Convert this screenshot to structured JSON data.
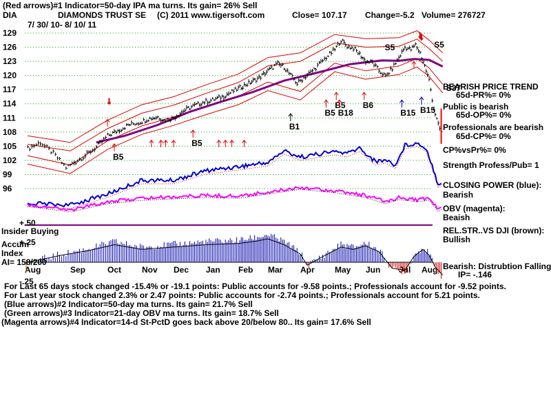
{
  "header": {
    "line1": "(Red arrows)#1 Indicator=50-day IPA ma turns. Its gain= 26% Sell",
    "symbol": "DIA",
    "name": "DIAMONDS TRUST SE",
    "copyright": "(C) 2011 www.tigersoft.com",
    "close": "Close= 107.17",
    "change": "Change=-5.2",
    "volume": "Volume= 276727",
    "date_range": "7/ 30/ 10- 8/ 10/ 11"
  },
  "right_panel": {
    "trend_title": "BEARISH PRICE TREND",
    "pr": "65d-PR%= 0%",
    "public": "Public is bearish",
    "op": "65d-OP%= 0%",
    "professionals": "Professionals are bearish",
    "cp": "65d-CP%= 0%",
    "cpvspr": "CP%vsPr%= 0%",
    "strength": "Strength Profess/Pub= 1",
    "closing_power": "CLOSING POWER (blue):",
    "closing_power_val": "Bearish",
    "obv": "OBV (magenta):",
    "obv_val": "Beaish",
    "relstr": "REL.STR..VS DJI (brown):",
    "relstr_val": "Bullish",
    "bearish_dist": "Bearish: Distrubtion Falling.",
    "ip": "IP= -.146"
  },
  "left_panel": {
    "plus50": "+.50",
    "insider": "Insider Buying",
    "accum": "Accum",
    "index": "Index",
    "ai": "AI= 158/200",
    "plus25": "+.25",
    "minus25": "-.25"
  },
  "footer": {
    "line1": "For Last 65 days stock changed -15.4% or -19.1 points: Public accounts for -9.58 points.; Professionals account for -9.52 points.",
    "line2": "For Last year stock changed 2.3% or 2.47 points: Public accounts for -2.74 points.; Professionals account for 5.21 points.",
    "line3": "(Blue arrows)#2 Indicator=50-day ma turns. Its gain= 21.7% Sell",
    "line4": "(Green arrows)#3 Indicator=21-day OBV ma turns. Its gain= 18.7% Sell",
    "line5": "(Magenta arrows)#4 Indicator=14-d St-PctD goes back above 20/below 80.. Its gain= 17.6% Sell"
  },
  "colors": {
    "price": "#000000",
    "bands": "#dd0000",
    "ma": "#800080",
    "closing_power": "#0000cc",
    "obv": "#ff00ff",
    "grid": "#00aa00",
    "accum_bars": "#0000aa",
    "accum_neg_bars": "#cc0000"
  },
  "chart_data": {
    "type": "line",
    "x_ticks": [
      "Aug",
      "Sep",
      "Oct",
      "Nov",
      "Dec",
      "Jan",
      "Feb",
      "Mar",
      "Apr",
      "May",
      "Jun",
      "Jul",
      "Aug"
    ],
    "y_ticks": [
      129,
      126,
      123,
      120,
      117,
      114,
      111,
      108,
      105,
      102,
      99,
      96
    ],
    "ylim": [
      96,
      129
    ],
    "price_points": [
      [
        0,
        104.5
      ],
      [
        0.3,
        105.8
      ],
      [
        0.6,
        103.5
      ],
      [
        0.9,
        100.5
      ],
      [
        1.1,
        101.5
      ],
      [
        1.4,
        103
      ],
      [
        1.7,
        104.8
      ],
      [
        2.0,
        107.2
      ],
      [
        2.3,
        108.3
      ],
      [
        2.6,
        109.5
      ],
      [
        2.9,
        110
      ],
      [
        3.2,
        110.8
      ],
      [
        3.5,
        111.2
      ],
      [
        3.7,
        110.5
      ],
      [
        4.0,
        111
      ],
      [
        4.3,
        112.5
      ],
      [
        4.6,
        113.5
      ],
      [
        4.9,
        114.3
      ],
      [
        5.2,
        114.8
      ],
      [
        5.5,
        115.5
      ],
      [
        5.8,
        116.5
      ],
      [
        6.1,
        117.6
      ],
      [
        6.4,
        118.5
      ],
      [
        6.7,
        119.5
      ],
      [
        7.0,
        121
      ],
      [
        7.3,
        122.5
      ],
      [
        7.5,
        121.8
      ],
      [
        7.7,
        120
      ],
      [
        7.9,
        118.3
      ],
      [
        8.1,
        119.5
      ],
      [
        8.4,
        121.3
      ],
      [
        8.7,
        123.5
      ],
      [
        9.0,
        125.5
      ],
      [
        9.2,
        127.5
      ],
      [
        9.4,
        126.2
      ],
      [
        9.6,
        125.8
      ],
      [
        9.8,
        124.5
      ],
      [
        10.0,
        123
      ],
      [
        10.2,
        122.8
      ],
      [
        10.4,
        121
      ],
      [
        10.6,
        119.8
      ],
      [
        10.8,
        121.5
      ],
      [
        11.0,
        123.8
      ],
      [
        11.2,
        126
      ],
      [
        11.4,
        125.5
      ],
      [
        11.55,
        126.5
      ],
      [
        11.7,
        124.8
      ],
      [
        11.85,
        122
      ],
      [
        12.0,
        119
      ],
      [
        12.15,
        113
      ],
      [
        12.3,
        109.5
      ],
      [
        12.45,
        107.2
      ]
    ],
    "upper_band": [
      [
        0,
        107.2
      ],
      [
        1,
        105.8
      ],
      [
        2,
        110.5
      ],
      [
        3,
        113.8
      ],
      [
        4,
        115.5
      ],
      [
        5,
        118
      ],
      [
        6,
        120.3
      ],
      [
        7,
        123.8
      ],
      [
        8,
        124.8
      ],
      [
        9,
        128.7
      ],
      [
        10,
        127.8
      ],
      [
        11,
        128
      ],
      [
        11.6,
        129.5
      ],
      [
        12,
        127.5
      ],
      [
        12.45,
        124.8
      ]
    ],
    "lower_band": [
      [
        0,
        101.2
      ],
      [
        1,
        99.2
      ],
      [
        2,
        104.3
      ],
      [
        3,
        107.5
      ],
      [
        4,
        109.4
      ],
      [
        5,
        111.7
      ],
      [
        6,
        113.8
      ],
      [
        7,
        116.8
      ],
      [
        8,
        114.8
      ],
      [
        9,
        120.8
      ],
      [
        10,
        119.2
      ],
      [
        11,
        120.2
      ],
      [
        11.6,
        121.8
      ],
      [
        12,
        119.8
      ],
      [
        12.45,
        116.3
      ]
    ],
    "ma50": [
      [
        1.7,
        105.8
      ],
      [
        2.5,
        107.2
      ],
      [
        3.5,
        109.5
      ],
      [
        4.5,
        112.3
      ],
      [
        5.5,
        114.5
      ],
      [
        6.5,
        116.5
      ],
      [
        7.5,
        118.9
      ],
      [
        8.5,
        120.6
      ],
      [
        9.5,
        122.4
      ],
      [
        10.5,
        123.2
      ],
      [
        11,
        123.1
      ],
      [
        11.5,
        123.5
      ],
      [
        12,
        123.3
      ],
      [
        12.45,
        121.9
      ]
    ],
    "signals": [
      {
        "label": "B5",
        "x": 2.2,
        "y": 103.9,
        "dir": "up",
        "color": "#dd0000"
      },
      {
        "label": "B5",
        "x": 4.6,
        "y": 106.8,
        "dir": "up",
        "color": "#dd0000"
      },
      {
        "label": "B1",
        "x": 7.7,
        "y": 110.3,
        "dir": "up",
        "color": "#000000"
      },
      {
        "label": "B5",
        "x": 8.75,
        "y": 113.2,
        "dir": "up",
        "color": "#dd0000"
      },
      {
        "label": "B5",
        "x": 9.05,
        "y": 114.8,
        "dir": "up",
        "color": "#dd0000"
      },
      {
        "label": "B18",
        "x": 9.15,
        "y": 113.2,
        "dir": "up",
        "color": "#dd0000"
      },
      {
        "label": "B6",
        "x": 9.95,
        "y": 114.8,
        "dir": "up",
        "color": "#dd0000"
      },
      {
        "label": "B15",
        "x": 11.1,
        "y": 113.2,
        "dir": "up",
        "color": "#0000cc"
      },
      {
        "label": "B15",
        "x": 11.75,
        "y": 113.8,
        "dir": "up",
        "color": "#0000cc"
      },
      {
        "label": "S5",
        "x": 10.7,
        "y": 125.9,
        "dir": "down",
        "color": "#000000"
      },
      {
        "label": "S5",
        "x": 12.3,
        "y": 126.5,
        "dir": "down",
        "color": "#000000"
      },
      {
        "label": "S37",
        "x": 12.7,
        "y": 117.3,
        "dir": "down",
        "color": "#000000"
      }
    ]
  }
}
